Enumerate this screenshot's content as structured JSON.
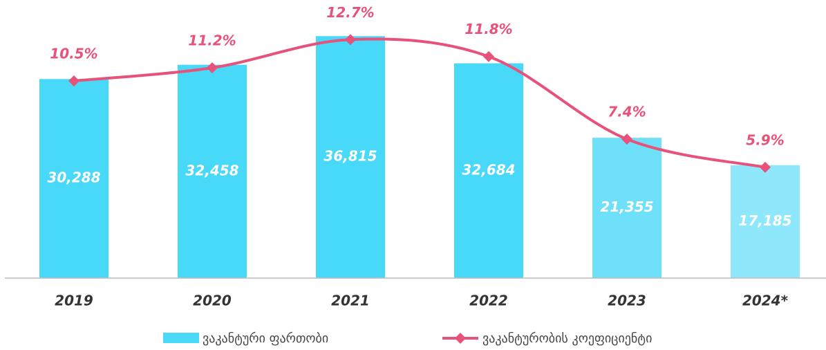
{
  "chart_data": {
    "type": "bar_line",
    "categories": [
      "2019",
      "2020",
      "2021",
      "2022",
      "2023",
      "2024*"
    ],
    "series": [
      {
        "name": "ვაკანტური ფართობი",
        "type": "bar",
        "color": "#48d8f8",
        "colors": [
          "#48d8f8",
          "#48d8f8",
          "#48d8f8",
          "#48d8f8",
          "#6fe0fa",
          "#8fe7fb"
        ],
        "values": [
          30288,
          32458,
          36815,
          32684,
          21355,
          17185
        ],
        "value_labels": [
          "30,288",
          "32,458",
          "36,815",
          "32,684",
          "21,355",
          "17,185"
        ]
      },
      {
        "name": "ვაკანტურობის კოეფიციენტი",
        "type": "line",
        "axis": "y2",
        "color": "#e8527a",
        "values": [
          10.5,
          11.2,
          12.7,
          11.8,
          7.4,
          5.9
        ],
        "value_labels": [
          "10.5%",
          "11.2%",
          "12.7%",
          "11.8%",
          "7.4%",
          "5.9%"
        ]
      }
    ],
    "ylim": [
      0,
      38000
    ],
    "y2lim": [
      0,
      13.3
    ]
  }
}
